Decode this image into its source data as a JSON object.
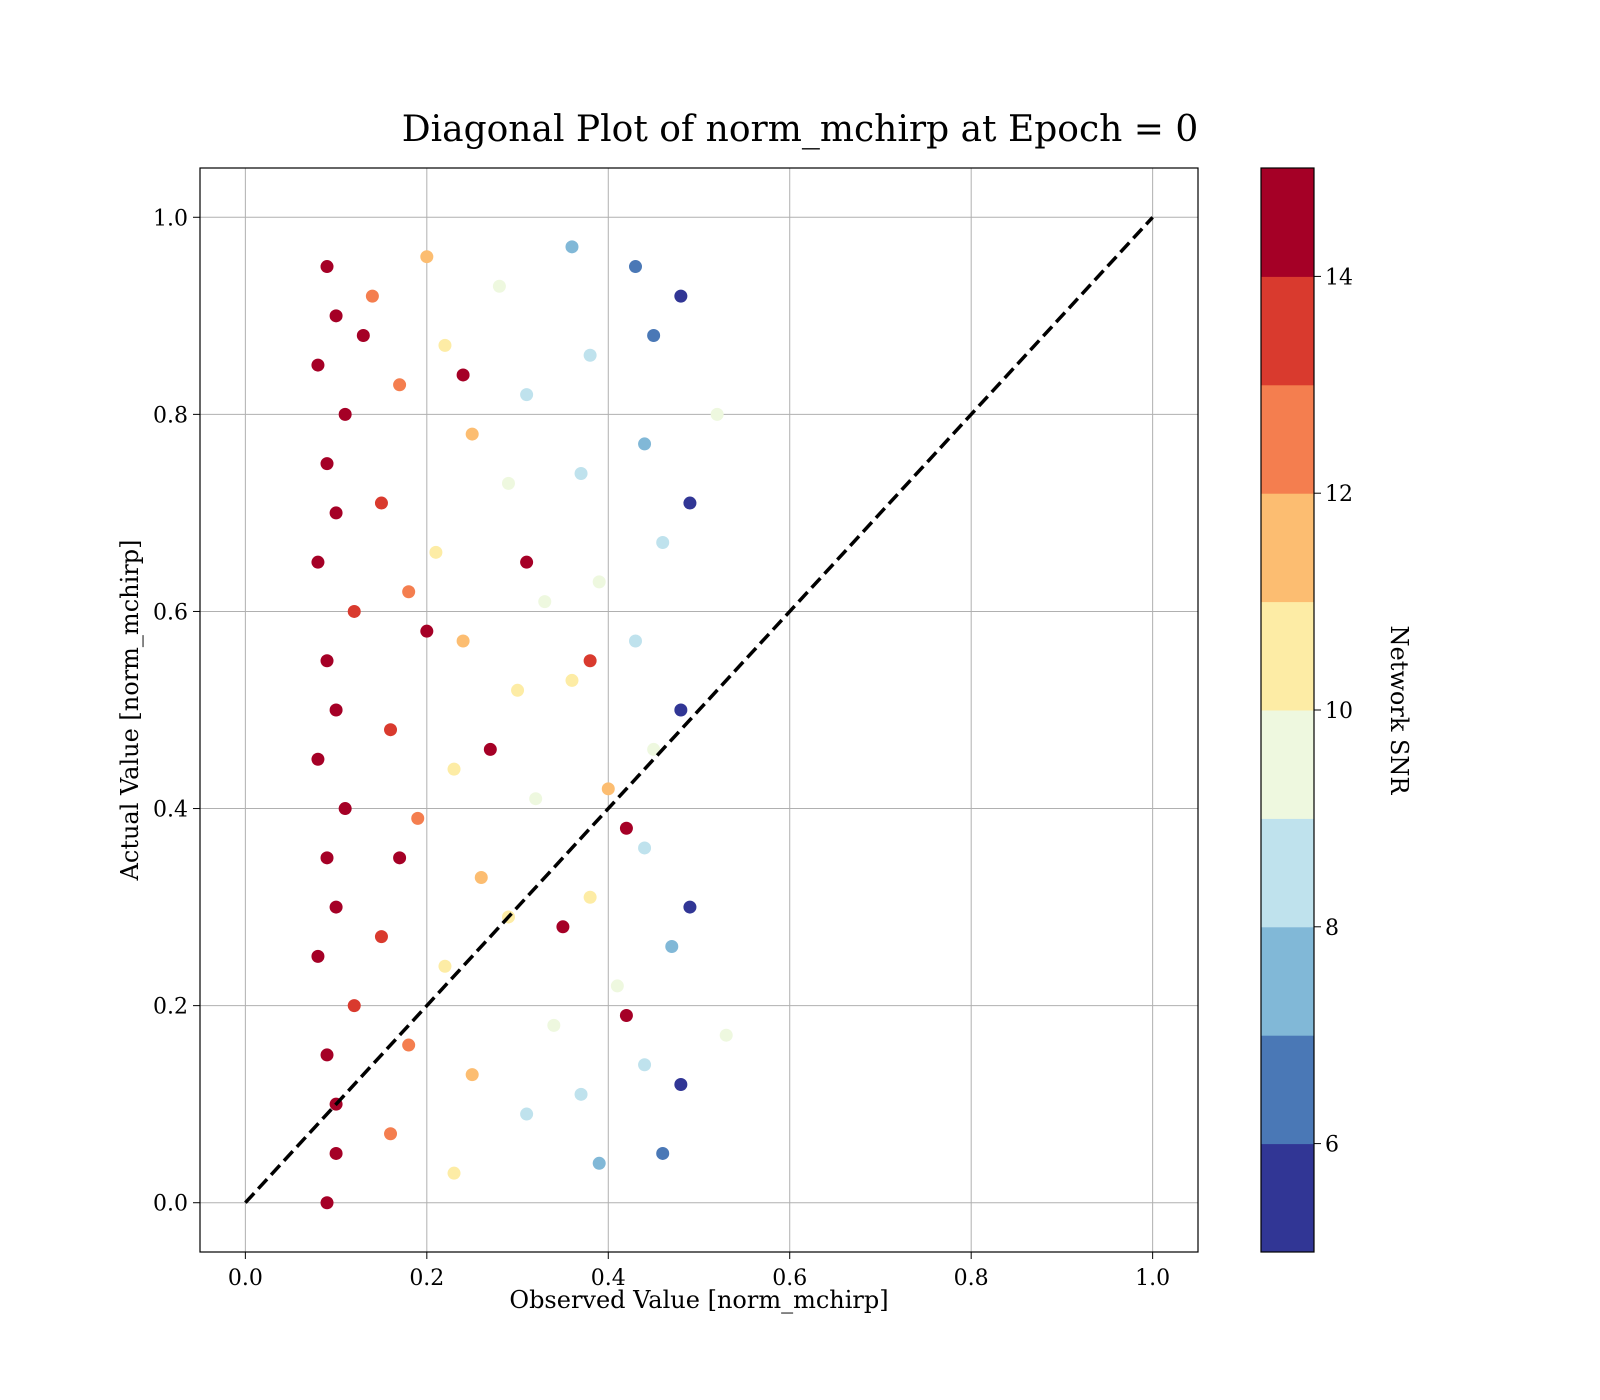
{
  "chart_data": {
    "type": "scatter",
    "title": "Diagonal Plot of norm_mchirp at Epoch = 0",
    "xlabel": "Observed Value [norm_mchirp]",
    "ylabel": "Actual Value [norm_mchirp]",
    "xlim": [
      -0.05,
      1.05
    ],
    "ylim": [
      -0.05,
      1.05
    ],
    "xticks": [
      0.0,
      0.2,
      0.4,
      0.6,
      0.8,
      1.0
    ],
    "yticks": [
      0.0,
      0.2,
      0.4,
      0.6,
      0.8,
      1.0
    ],
    "xtick_labels": [
      "0.0",
      "0.2",
      "0.4",
      "0.6",
      "0.8",
      "1.0"
    ],
    "ytick_labels": [
      "0.0",
      "0.2",
      "0.4",
      "0.6",
      "0.8",
      "1.0"
    ],
    "grid": true,
    "reference_line": {
      "style": "dashed",
      "color": "#000000",
      "x": [
        0.0,
        1.0
      ],
      "y": [
        0.0,
        1.0
      ]
    },
    "colorbar": {
      "label": "Network SNR",
      "range": [
        5,
        15
      ],
      "ticks": [
        6,
        8,
        10,
        12,
        14
      ],
      "tick_labels": [
        "6",
        "8",
        "10",
        "12",
        "14"
      ],
      "colors": [
        "#313695",
        "#4a78b6",
        "#81b8d7",
        "#bfe2ed",
        "#eef8df",
        "#fdeca5",
        "#fcbd71",
        "#f47e4f",
        "#d93a2e",
        "#a50026"
      ]
    },
    "series": [
      {
        "description_of_distribution": "dense band",
        "points": [
          [
            0.09,
            0.95,
            14.8
          ],
          [
            0.1,
            0.9,
            14.6
          ],
          [
            0.08,
            0.85,
            14.9
          ],
          [
            0.11,
            0.8,
            14.2
          ],
          [
            0.09,
            0.75,
            14.7
          ],
          [
            0.1,
            0.7,
            14.5
          ],
          [
            0.08,
            0.65,
            14.9
          ],
          [
            0.12,
            0.6,
            13.8
          ],
          [
            0.09,
            0.55,
            14.6
          ],
          [
            0.1,
            0.5,
            14.8
          ],
          [
            0.08,
            0.45,
            14.4
          ],
          [
            0.11,
            0.4,
            14.1
          ],
          [
            0.09,
            0.35,
            14.9
          ],
          [
            0.1,
            0.3,
            14.6
          ],
          [
            0.08,
            0.25,
            14.3
          ],
          [
            0.12,
            0.2,
            13.9
          ],
          [
            0.09,
            0.15,
            14.7
          ],
          [
            0.1,
            0.1,
            14.8
          ],
          [
            0.1,
            0.05,
            14.2
          ],
          [
            0.09,
            0.0,
            14.9
          ],
          [
            0.14,
            0.92,
            12.8
          ],
          [
            0.17,
            0.83,
            12.1
          ],
          [
            0.15,
            0.71,
            13.2
          ],
          [
            0.18,
            0.62,
            12.6
          ],
          [
            0.16,
            0.48,
            13.4
          ],
          [
            0.19,
            0.39,
            12.3
          ],
          [
            0.15,
            0.27,
            13.1
          ],
          [
            0.18,
            0.16,
            12.7
          ],
          [
            0.16,
            0.07,
            12.9
          ],
          [
            0.2,
            0.96,
            11.2
          ],
          [
            0.22,
            0.87,
            10.6
          ],
          [
            0.25,
            0.78,
            11.4
          ],
          [
            0.21,
            0.66,
            10.9
          ],
          [
            0.24,
            0.57,
            11.7
          ],
          [
            0.23,
            0.44,
            10.3
          ],
          [
            0.26,
            0.33,
            11.1
          ],
          [
            0.22,
            0.24,
            10.8
          ],
          [
            0.25,
            0.13,
            11.5
          ],
          [
            0.23,
            0.03,
            10.4
          ],
          [
            0.28,
            0.93,
            9.4
          ],
          [
            0.31,
            0.82,
            8.7
          ],
          [
            0.29,
            0.73,
            9.8
          ],
          [
            0.33,
            0.61,
            9.1
          ],
          [
            0.3,
            0.52,
            10.2
          ],
          [
            0.32,
            0.41,
            9.6
          ],
          [
            0.29,
            0.29,
            10.7
          ],
          [
            0.34,
            0.18,
            9.3
          ],
          [
            0.31,
            0.09,
            8.9
          ],
          [
            0.36,
            0.97,
            7.6
          ],
          [
            0.38,
            0.86,
            8.2
          ],
          [
            0.37,
            0.74,
            8.8
          ],
          [
            0.39,
            0.63,
            9.7
          ],
          [
            0.36,
            0.53,
            10.5
          ],
          [
            0.4,
            0.42,
            11.3
          ],
          [
            0.38,
            0.31,
            10.9
          ],
          [
            0.41,
            0.22,
            9.9
          ],
          [
            0.37,
            0.11,
            8.4
          ],
          [
            0.39,
            0.04,
            7.3
          ],
          [
            0.43,
            0.95,
            6.4
          ],
          [
            0.45,
            0.88,
            6.1
          ],
          [
            0.44,
            0.77,
            7.4
          ],
          [
            0.46,
            0.67,
            8.1
          ],
          [
            0.43,
            0.57,
            8.6
          ],
          [
            0.45,
            0.46,
            9.2
          ],
          [
            0.44,
            0.36,
            8.3
          ],
          [
            0.47,
            0.26,
            7.7
          ],
          [
            0.44,
            0.14,
            8.5
          ],
          [
            0.46,
            0.05,
            6.8
          ],
          [
            0.48,
            0.92,
            5.6
          ],
          [
            0.49,
            0.71,
            5.4
          ],
          [
            0.48,
            0.5,
            5.8
          ],
          [
            0.49,
            0.3,
            5.5
          ],
          [
            0.48,
            0.12,
            5.9
          ],
          [
            0.52,
            0.8,
            9.6
          ],
          [
            0.53,
            0.17,
            9.5
          ],
          [
            0.13,
            0.88,
            14.1
          ],
          [
            0.2,
            0.58,
            14.3
          ],
          [
            0.27,
            0.46,
            14.5
          ],
          [
            0.35,
            0.28,
            14.4
          ],
          [
            0.42,
            0.38,
            14.6
          ],
          [
            0.31,
            0.65,
            14.2
          ],
          [
            0.24,
            0.84,
            14.7
          ],
          [
            0.38,
            0.55,
            13.9
          ],
          [
            0.42,
            0.19,
            14.3
          ],
          [
            0.17,
            0.35,
            14.6
          ]
        ]
      }
    ]
  }
}
